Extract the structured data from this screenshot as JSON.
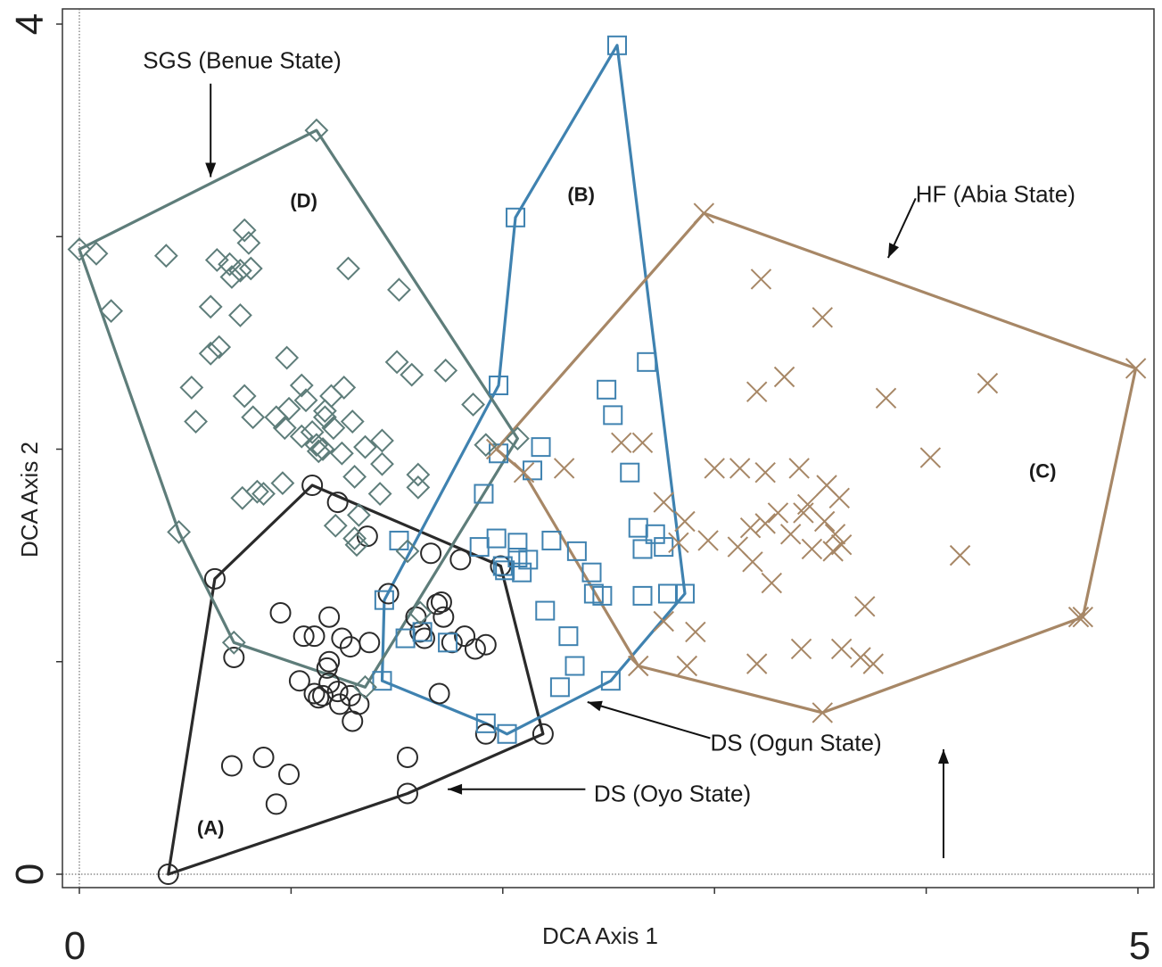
{
  "chart_data": {
    "type": "scatter",
    "title": "",
    "xlabel": "DCA Axis 1",
    "ylabel": "DCA Axis 2",
    "xlim": [
      0,
      5
    ],
    "ylim": [
      0,
      4
    ],
    "x_tick_labels": [
      "0",
      "5"
    ],
    "y_tick_labels": [
      "0",
      "4"
    ],
    "grid": false,
    "legend": "none",
    "colors": {
      "A": "#2a2a2a",
      "B": "#3f82b0",
      "C": "#a78766",
      "D": "#5e7d7a",
      "axis": "#333333"
    },
    "group_labels": [
      {
        "id": "A",
        "text": "(A)",
        "x": 0.62,
        "y": 0.22
      },
      {
        "id": "B",
        "text": "(B)",
        "x": 2.37,
        "y": 3.2
      },
      {
        "id": "C",
        "text": "(C)",
        "x": 4.55,
        "y": 1.9
      },
      {
        "id": "D",
        "text": "(D)",
        "x": 1.06,
        "y": 3.17
      }
    ],
    "annotations": [
      {
        "text": "SGS (Benue State)",
        "x": 0.3,
        "y": 3.83,
        "arrow_from": [
          0.62,
          3.72
        ],
        "arrow_to": [
          0.62,
          3.28
        ]
      },
      {
        "text": "HF (Abia State)",
        "x": 3.95,
        "y": 3.2,
        "arrow_from": [
          3.95,
          3.18
        ],
        "arrow_to": [
          3.82,
          2.9
        ]
      },
      {
        "text": "DS (Ogun State)",
        "x": 2.98,
        "y": 0.62,
        "arrow_from": [
          2.98,
          0.64
        ],
        "arrow_to": [
          2.4,
          0.81
        ]
      },
      {
        "text": "DS (Oyo State)",
        "x": 2.43,
        "y": 0.38,
        "arrow_from": [
          2.39,
          0.4
        ],
        "arrow_to": [
          1.74,
          0.4
        ]
      }
    ],
    "series": [
      {
        "name": "DS (Oyo State)",
        "group": "A",
        "marker": "circle",
        "hull": [
          [
            0.42,
            0.0
          ],
          [
            0.64,
            1.39
          ],
          [
            1.1,
            1.83
          ],
          [
            1.99,
            1.45
          ],
          [
            2.19,
            0.66
          ],
          [
            1.55,
            0.38
          ]
        ],
        "points": [
          [
            0.42,
            0.0
          ],
          [
            0.64,
            1.39
          ],
          [
            1.1,
            1.83
          ],
          [
            1.99,
            1.45
          ],
          [
            2.19,
            0.66
          ],
          [
            1.55,
            0.38
          ],
          [
            0.72,
            0.51
          ],
          [
            0.87,
            0.55
          ],
          [
            0.99,
            0.47
          ],
          [
            0.93,
            0.33
          ],
          [
            1.55,
            0.55
          ],
          [
            0.73,
            1.02
          ],
          [
            0.95,
            1.23
          ],
          [
            1.06,
            1.12
          ],
          [
            1.11,
            1.12
          ],
          [
            1.18,
            1.21
          ],
          [
            1.24,
            1.11
          ],
          [
            1.28,
            1.07
          ],
          [
            1.37,
            1.09
          ],
          [
            1.46,
            1.32
          ],
          [
            1.59,
            1.21
          ],
          [
            1.61,
            1.14
          ],
          [
            1.63,
            1.11
          ],
          [
            1.69,
            1.27
          ],
          [
            1.71,
            1.28
          ],
          [
            1.72,
            1.21
          ],
          [
            1.76,
            1.09
          ],
          [
            1.82,
            1.12
          ],
          [
            1.87,
            1.06
          ],
          [
            1.92,
            1.08
          ],
          [
            1.04,
            0.91
          ],
          [
            1.11,
            0.85
          ],
          [
            1.13,
            0.83
          ],
          [
            1.15,
            0.84
          ],
          [
            1.17,
            0.97
          ],
          [
            1.18,
            1.0
          ],
          [
            1.22,
            0.86
          ],
          [
            1.23,
            0.8
          ],
          [
            1.28,
            0.84
          ],
          [
            1.29,
            0.72
          ],
          [
            1.32,
            0.8
          ],
          [
            1.18,
            0.9
          ],
          [
            1.7,
            0.85
          ],
          [
            1.92,
            0.66
          ],
          [
            1.22,
            1.75
          ],
          [
            1.8,
            1.48
          ],
          [
            1.66,
            1.51
          ],
          [
            1.36,
            1.59
          ]
        ]
      },
      {
        "name": "DS (Ogun State)",
        "group": "B",
        "marker": "square",
        "hull": [
          [
            1.43,
            0.91
          ],
          [
            1.44,
            1.29
          ],
          [
            1.98,
            2.3
          ],
          [
            2.06,
            3.09
          ],
          [
            2.54,
            3.9
          ],
          [
            2.86,
            1.32
          ],
          [
            2.51,
            0.91
          ],
          [
            2.02,
            0.66
          ],
          [
            1.92,
            0.71
          ]
        ],
        "points": [
          [
            1.43,
            0.91
          ],
          [
            1.44,
            1.29
          ],
          [
            1.98,
            2.3
          ],
          [
            2.06,
            3.09
          ],
          [
            2.54,
            3.9
          ],
          [
            2.86,
            1.32
          ],
          [
            2.51,
            0.91
          ],
          [
            2.02,
            0.66
          ],
          [
            1.92,
            0.71
          ],
          [
            2.68,
            2.41
          ],
          [
            2.49,
            2.28
          ],
          [
            2.52,
            2.16
          ],
          [
            2.18,
            2.01
          ],
          [
            2.14,
            1.9
          ],
          [
            1.91,
            1.79
          ],
          [
            2.07,
            1.56
          ],
          [
            2.07,
            1.49
          ],
          [
            2.09,
            1.42
          ],
          [
            2.12,
            1.48
          ],
          [
            2.23,
            1.57
          ],
          [
            2.35,
            1.52
          ],
          [
            2.42,
            1.42
          ],
          [
            2.64,
            1.63
          ],
          [
            2.66,
            1.53
          ],
          [
            2.72,
            1.6
          ],
          [
            2.76,
            1.54
          ],
          [
            2.78,
            1.32
          ],
          [
            2.66,
            1.31
          ],
          [
            2.47,
            1.31
          ],
          [
            2.43,
            1.32
          ],
          [
            2.6,
            1.89
          ],
          [
            2.2,
            1.24
          ],
          [
            2.31,
            1.12
          ],
          [
            2.34,
            0.98
          ],
          [
            2.27,
            0.88
          ],
          [
            1.54,
            1.11
          ],
          [
            1.62,
            1.14
          ],
          [
            1.74,
            1.09
          ],
          [
            1.89,
            1.54
          ],
          [
            1.97,
            1.58
          ],
          [
            2.0,
            1.45
          ],
          [
            2.01,
            1.43
          ],
          [
            1.51,
            1.57
          ],
          [
            1.98,
            1.98
          ]
        ]
      },
      {
        "name": "HF (Abia State)",
        "group": "C",
        "marker": "x",
        "hull": [
          [
            1.97,
            2.0
          ],
          [
            2.1,
            1.89
          ],
          [
            2.64,
            0.98
          ],
          [
            3.51,
            0.76
          ],
          [
            4.74,
            1.21
          ],
          [
            4.99,
            2.38
          ],
          [
            2.95,
            3.11
          ]
        ],
        "points": [
          [
            1.97,
            2.0
          ],
          [
            2.1,
            1.89
          ],
          [
            2.64,
            0.98
          ],
          [
            3.51,
            0.76
          ],
          [
            4.74,
            1.21
          ],
          [
            4.99,
            2.38
          ],
          [
            2.95,
            3.11
          ],
          [
            3.22,
            2.8
          ],
          [
            3.51,
            2.62
          ],
          [
            3.33,
            2.34
          ],
          [
            3.2,
            2.27
          ],
          [
            3.81,
            2.24
          ],
          [
            4.29,
            2.31
          ],
          [
            4.02,
            1.96
          ],
          [
            3.0,
            1.91
          ],
          [
            3.12,
            1.91
          ],
          [
            3.24,
            1.89
          ],
          [
            3.4,
            1.91
          ],
          [
            3.53,
            1.83
          ],
          [
            3.59,
            1.77
          ],
          [
            3.44,
            1.74
          ],
          [
            3.42,
            1.7
          ],
          [
            3.52,
            1.66
          ],
          [
            3.57,
            1.6
          ],
          [
            3.6,
            1.55
          ],
          [
            3.3,
            1.7
          ],
          [
            3.24,
            1.65
          ],
          [
            3.17,
            1.63
          ],
          [
            3.11,
            1.54
          ],
          [
            3.18,
            1.47
          ],
          [
            3.27,
            1.37
          ],
          [
            3.36,
            1.6
          ],
          [
            3.46,
            1.53
          ],
          [
            3.56,
            1.52
          ],
          [
            2.97,
            1.57
          ],
          [
            2.86,
            1.66
          ],
          [
            2.76,
            1.75
          ],
          [
            2.83,
            1.56
          ],
          [
            2.56,
            2.03
          ],
          [
            2.66,
            2.03
          ],
          [
            2.29,
            1.91
          ],
          [
            2.76,
            1.19
          ],
          [
            2.91,
            1.14
          ],
          [
            2.87,
            0.98
          ],
          [
            3.2,
            0.99
          ],
          [
            3.41,
            1.06
          ],
          [
            3.6,
            1.06
          ],
          [
            3.69,
            1.02
          ],
          [
            3.75,
            0.99
          ],
          [
            3.71,
            1.26
          ],
          [
            4.16,
            1.5
          ],
          [
            4.72,
            1.21
          ]
        ]
      },
      {
        "name": "SGS (Benue State)",
        "group": "D",
        "marker": "diamond",
        "hull": [
          [
            0.0,
            2.94
          ],
          [
            1.12,
            3.5
          ],
          [
            2.07,
            2.05
          ],
          [
            1.35,
            0.88
          ],
          [
            0.73,
            1.09
          ],
          [
            0.47,
            1.61
          ]
        ],
        "points": [
          [
            0.0,
            2.94
          ],
          [
            1.12,
            3.5
          ],
          [
            2.07,
            2.05
          ],
          [
            1.35,
            0.88
          ],
          [
            0.73,
            1.09
          ],
          [
            0.47,
            1.61
          ],
          [
            0.08,
            2.92
          ],
          [
            0.15,
            2.65
          ],
          [
            0.41,
            2.91
          ],
          [
            0.65,
            2.89
          ],
          [
            0.78,
            3.03
          ],
          [
            0.8,
            2.97
          ],
          [
            0.71,
            2.87
          ],
          [
            0.76,
            2.84
          ],
          [
            0.72,
            2.81
          ],
          [
            0.81,
            2.85
          ],
          [
            0.62,
            2.67
          ],
          [
            0.76,
            2.63
          ],
          [
            0.62,
            2.45
          ],
          [
            0.66,
            2.48
          ],
          [
            0.98,
            2.43
          ],
          [
            1.05,
            2.3
          ],
          [
            0.99,
            2.19
          ],
          [
            1.07,
            2.23
          ],
          [
            1.16,
            2.18
          ],
          [
            1.19,
            2.25
          ],
          [
            1.25,
            2.29
          ],
          [
            0.78,
            2.25
          ],
          [
            0.82,
            2.15
          ],
          [
            0.93,
            2.15
          ],
          [
            0.97,
            2.1
          ],
          [
            1.05,
            2.06
          ],
          [
            1.1,
            2.08
          ],
          [
            1.16,
            2.15
          ],
          [
            1.2,
            2.1
          ],
          [
            1.29,
            2.13
          ],
          [
            1.35,
            2.01
          ],
          [
            1.12,
            2.02
          ],
          [
            1.13,
            1.99
          ],
          [
            1.15,
            2.0
          ],
          [
            1.24,
            1.98
          ],
          [
            1.3,
            1.87
          ],
          [
            0.53,
            2.29
          ],
          [
            0.55,
            2.13
          ],
          [
            1.5,
            2.41
          ],
          [
            1.57,
            2.35
          ],
          [
            1.43,
            2.04
          ],
          [
            1.31,
            1.55
          ],
          [
            1.43,
            1.93
          ],
          [
            1.6,
            1.88
          ],
          [
            1.6,
            1.82
          ],
          [
            0.77,
            1.77
          ],
          [
            0.84,
            1.8
          ],
          [
            0.87,
            1.79
          ],
          [
            0.96,
            1.84
          ],
          [
            1.21,
            1.64
          ],
          [
            1.3,
            1.58
          ],
          [
            1.42,
            1.79
          ],
          [
            1.32,
            1.69
          ],
          [
            1.73,
            2.37
          ],
          [
            1.86,
            2.21
          ],
          [
            1.92,
            2.02
          ],
          [
            1.27,
            2.85
          ],
          [
            1.51,
            2.75
          ],
          [
            1.55,
            1.52
          ],
          [
            1.61,
            1.23
          ]
        ]
      }
    ]
  }
}
